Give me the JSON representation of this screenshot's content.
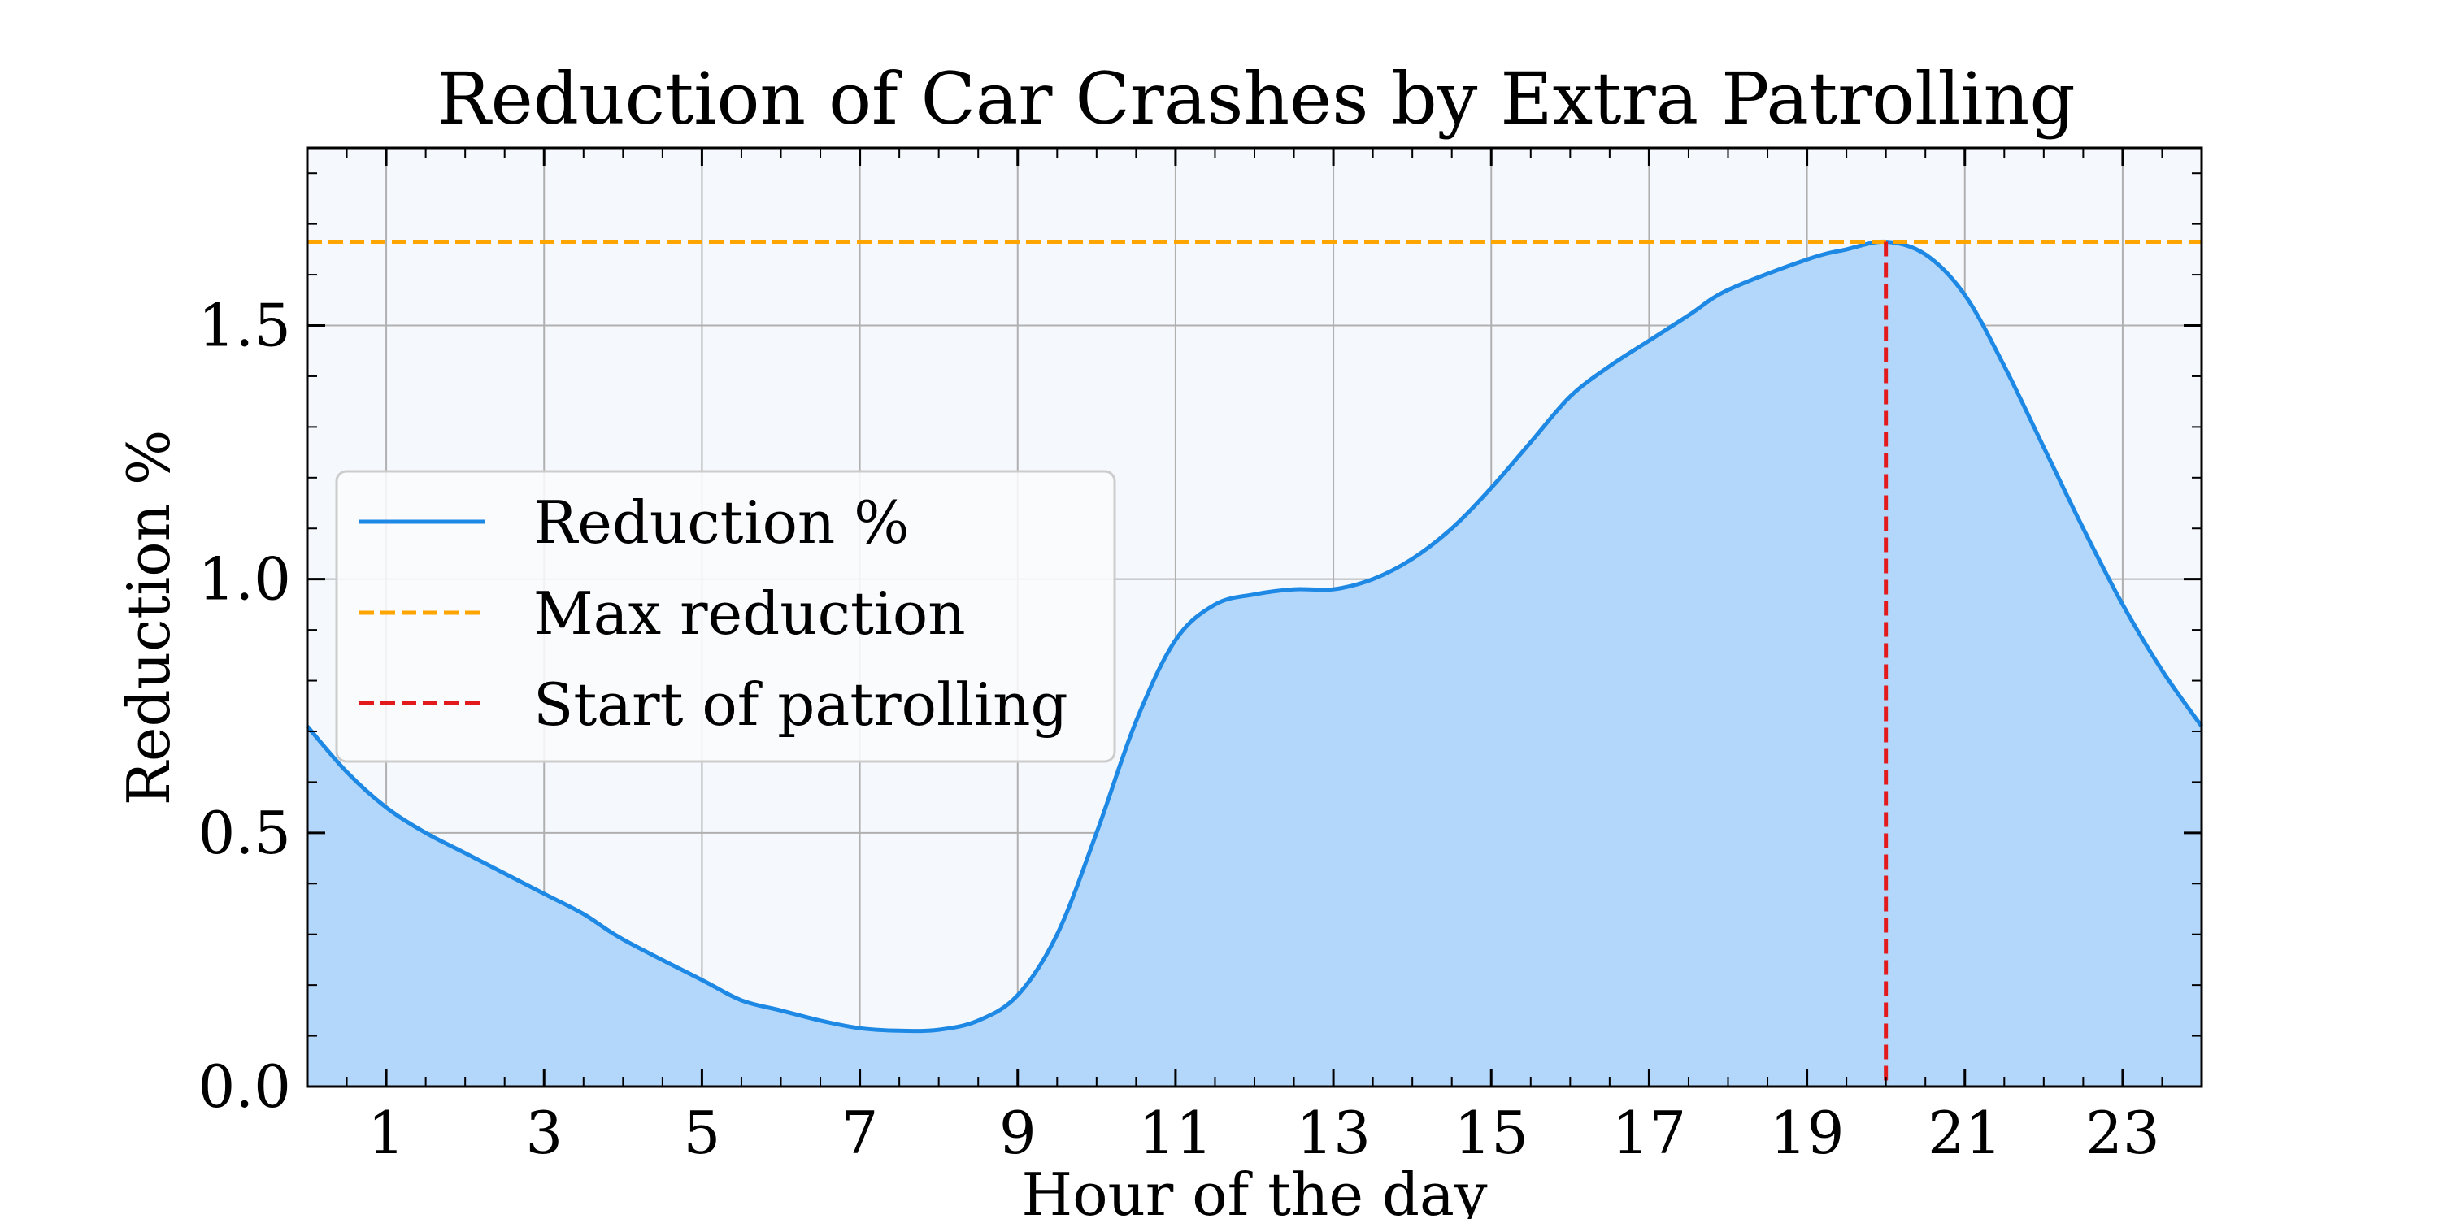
{
  "chart_data": {
    "type": "area",
    "title": "Reduction of Car Crashes by Extra Patrolling",
    "xlabel": "Hour of the day",
    "ylabel": "Reduction %",
    "xlim": [
      0,
      24
    ],
    "ylim": [
      0,
      1.85
    ],
    "xticks": [
      1,
      3,
      5,
      7,
      9,
      11,
      13,
      15,
      17,
      19,
      21,
      23
    ],
    "yticks": [
      0.0,
      0.5,
      1.0,
      1.5
    ],
    "ytick_labels": [
      "0.0",
      "0.5",
      "1.0",
      "1.5"
    ],
    "grid": true,
    "legend_position": "center-left",
    "series": [
      {
        "name": "Reduction %",
        "style": "solid",
        "color": "#1e88e5",
        "fill_color": "#b3d7fb",
        "x": [
          0,
          0.5,
          1,
          1.5,
          2,
          3,
          3.5,
          4,
          5,
          5.5,
          6,
          6.5,
          7,
          7.5,
          8,
          8.5,
          9,
          9.5,
          10,
          10.5,
          11,
          11.5,
          12,
          12.5,
          13,
          13.5,
          14,
          14.5,
          15,
          15.5,
          16,
          16.5,
          17,
          17.5,
          18,
          19,
          19.5,
          20,
          20.5,
          21,
          21.5,
          22,
          22.5,
          23,
          23.5,
          24
        ],
        "y": [
          0.71,
          0.62,
          0.55,
          0.5,
          0.46,
          0.38,
          0.34,
          0.29,
          0.21,
          0.17,
          0.15,
          0.13,
          0.115,
          0.11,
          0.112,
          0.13,
          0.18,
          0.3,
          0.5,
          0.72,
          0.88,
          0.95,
          0.97,
          0.98,
          0.98,
          1.0,
          1.04,
          1.1,
          1.18,
          1.27,
          1.36,
          1.42,
          1.47,
          1.52,
          1.57,
          1.63,
          1.65,
          1.665,
          1.64,
          1.56,
          1.42,
          1.26,
          1.1,
          0.95,
          0.82,
          0.71
        ]
      },
      {
        "name": "Max reduction",
        "style": "dashed",
        "orientation": "horizontal",
        "color": "#ffa500",
        "value": 1.665
      },
      {
        "name": "Start of patrolling",
        "style": "dashed",
        "orientation": "vertical",
        "color": "#e31a1c",
        "value": 20,
        "y_range": [
          0,
          1.665
        ]
      }
    ],
    "colors": {
      "plot_background": "#f5f8fc",
      "grid": "#b0b0b0"
    }
  }
}
